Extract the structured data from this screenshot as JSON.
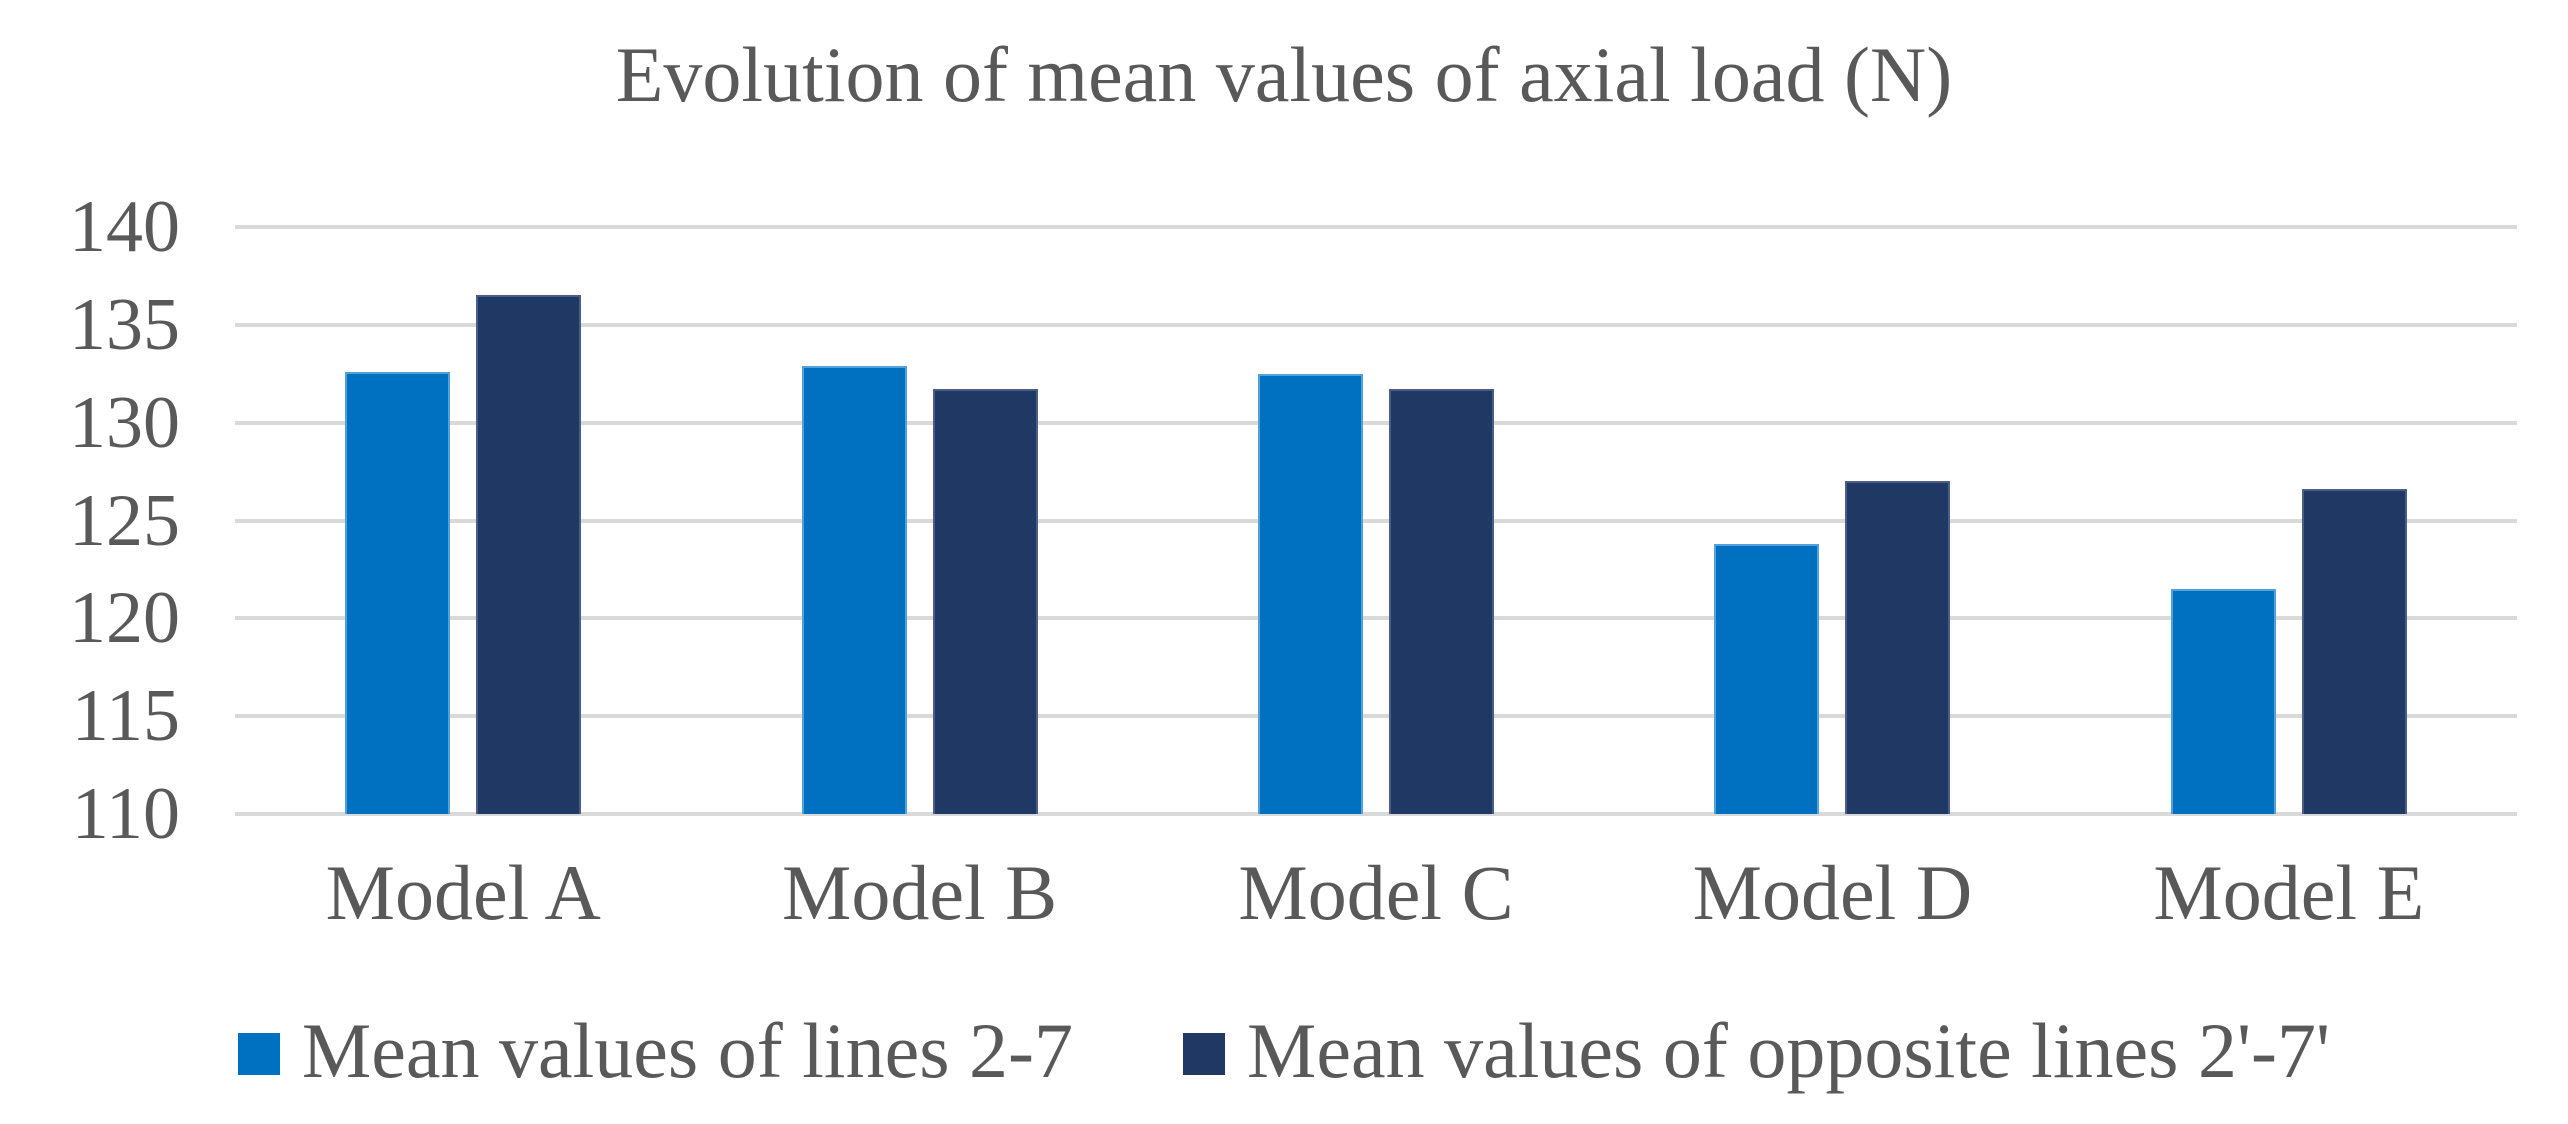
{
  "chart_data": {
    "type": "bar",
    "title": "Evolution of mean values of axial load (N)",
    "categories": [
      "Model A",
      "Model B",
      "Model C",
      "Model D",
      "Model E"
    ],
    "series": [
      {
        "name": "Mean values of lines 2-7",
        "color": "#0070C0",
        "border_color": "#54A0D9",
        "values": [
          132.6,
          132.9,
          132.5,
          123.8,
          121.5
        ]
      },
      {
        "name": "Mean values of opposite lines 2'-7'",
        "color": "#203864",
        "border_color": "#4A5E86",
        "values": [
          136.5,
          131.7,
          131.7,
          127.0,
          126.6
        ]
      }
    ],
    "xlabel": "",
    "ylabel": "",
    "ylim": [
      110,
      140
    ],
    "yticks": [
      140,
      135,
      130,
      125,
      120,
      115,
      110
    ],
    "grid": true,
    "legend_position": "bottom",
    "gridline_color": "#D9D9D9",
    "text_color": "#595959",
    "background": "#FFFFFF"
  }
}
